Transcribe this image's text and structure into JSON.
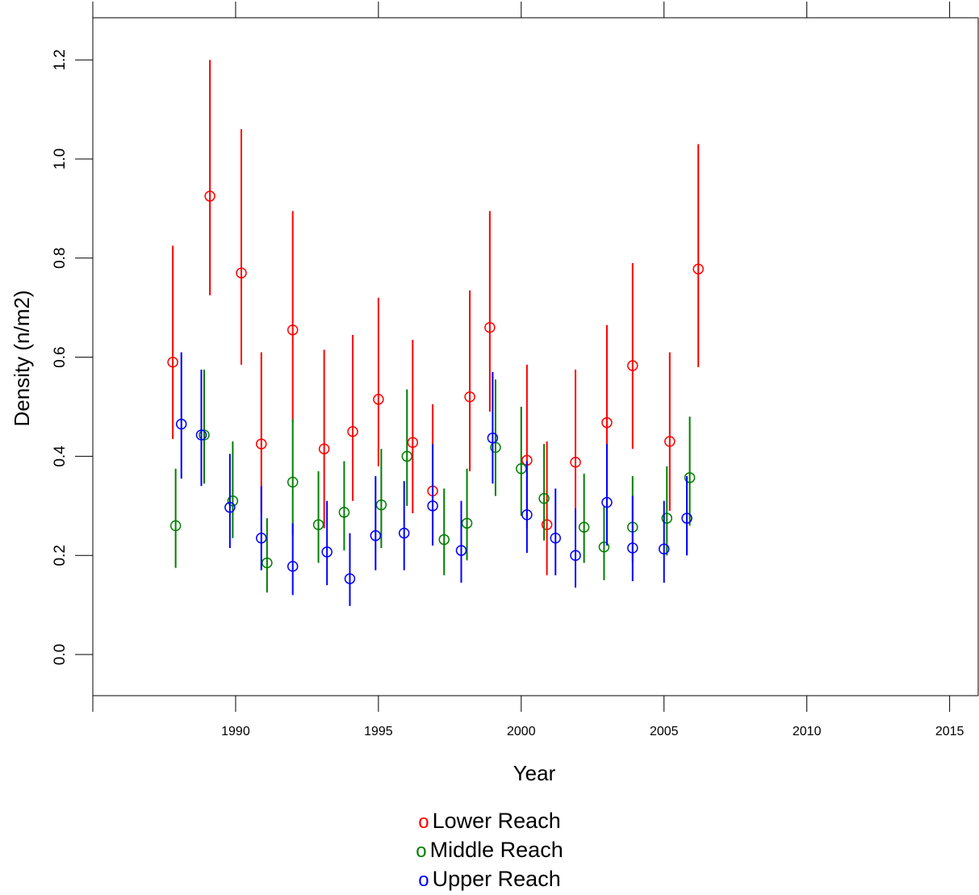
{
  "chart_data": {
    "type": "scatter",
    "xlabel": "Year",
    "ylabel": "Density (n/m2)",
    "xlim": [
      1985,
      2016
    ],
    "ylim": [
      -0.083,
      1.285
    ],
    "x_ticks": [
      "1990",
      "1995",
      "2000",
      "2005",
      "2010",
      "2015"
    ],
    "y_ticks": [
      "0.0",
      "0.2",
      "0.4",
      "0.6",
      "0.8",
      "1.0",
      "1.2"
    ],
    "error_bars": true,
    "series": [
      {
        "name": "Lower Reach",
        "color": "#ff0000",
        "x": [
          1987.8,
          1989.1,
          1990.2,
          1990.9,
          1992.0,
          1993.1,
          1994.1,
          1995.0,
          1996.2,
          1996.9,
          1998.2,
          1998.9,
          2000.2,
          2000.9,
          2001.9,
          2003.0,
          2003.9,
          2005.2,
          2006.2
        ],
        "y": [
          0.59,
          0.925,
          0.77,
          0.425,
          0.655,
          0.415,
          0.45,
          0.515,
          0.428,
          0.33,
          0.52,
          0.66,
          0.392,
          0.262,
          0.388,
          0.468,
          0.583,
          0.43,
          0.778
        ],
        "lower": [
          0.435,
          0.725,
          0.585,
          0.285,
          0.47,
          0.255,
          0.31,
          0.38,
          0.285,
          0.22,
          0.37,
          0.49,
          0.255,
          0.16,
          0.255,
          0.32,
          0.415,
          0.29,
          0.58
        ],
        "upper": [
          0.825,
          1.2,
          1.06,
          0.61,
          0.895,
          0.615,
          0.645,
          0.72,
          0.635,
          0.505,
          0.735,
          0.895,
          0.585,
          0.43,
          0.575,
          0.665,
          0.79,
          0.61,
          1.03
        ]
      },
      {
        "name": "Middle Reach",
        "color": "#007f00",
        "x": [
          1987.9,
          1988.9,
          1989.9,
          1991.1,
          1992.0,
          1992.9,
          1993.8,
          1995.1,
          1996.0,
          1997.3,
          1998.1,
          1999.1,
          2000.0,
          2000.8,
          2002.2,
          2002.9,
          2003.9,
          2005.1,
          2005.9
        ],
        "y": [
          0.26,
          0.443,
          0.31,
          0.185,
          0.348,
          0.262,
          0.287,
          0.302,
          0.4,
          0.232,
          0.265,
          0.418,
          0.375,
          0.315,
          0.257,
          0.217,
          0.257,
          0.275,
          0.357
        ],
        "lower": [
          0.175,
          0.345,
          0.235,
          0.125,
          0.24,
          0.185,
          0.21,
          0.215,
          0.3,
          0.16,
          0.19,
          0.32,
          0.28,
          0.23,
          0.185,
          0.15,
          0.185,
          0.2,
          0.26
        ],
        "upper": [
          0.375,
          0.575,
          0.43,
          0.275,
          0.475,
          0.37,
          0.39,
          0.415,
          0.535,
          0.335,
          0.375,
          0.555,
          0.5,
          0.425,
          0.365,
          0.3,
          0.36,
          0.38,
          0.48
        ]
      },
      {
        "name": "Upper Reach",
        "color": "#0000ff",
        "x": [
          1988.1,
          1988.8,
          1989.8,
          1990.9,
          1992.0,
          1993.2,
          1994.0,
          1994.9,
          1995.9,
          1996.9,
          1997.9,
          1999.0,
          2000.2,
          2001.2,
          2001.9,
          2003.0,
          2003.9,
          2005.0,
          2005.8
        ],
        "y": [
          0.465,
          0.443,
          0.297,
          0.235,
          0.178,
          0.207,
          0.153,
          0.24,
          0.245,
          0.3,
          0.21,
          0.437,
          0.282,
          0.235,
          0.2,
          0.307,
          0.215,
          0.213,
          0.275
        ],
        "lower": [
          0.355,
          0.34,
          0.215,
          0.17,
          0.12,
          0.14,
          0.098,
          0.17,
          0.17,
          0.22,
          0.145,
          0.345,
          0.205,
          0.16,
          0.135,
          0.22,
          0.148,
          0.145,
          0.2
        ],
        "upper": [
          0.61,
          0.575,
          0.405,
          0.34,
          0.265,
          0.31,
          0.245,
          0.36,
          0.35,
          0.425,
          0.31,
          0.57,
          0.39,
          0.335,
          0.295,
          0.425,
          0.32,
          0.31,
          0.36
        ]
      }
    ],
    "legend": [
      {
        "symbol": "o",
        "label": "Lower Reach",
        "color": "#ff0000"
      },
      {
        "symbol": "o",
        "label": "Middle Reach",
        "color": "#007f00"
      },
      {
        "symbol": "o",
        "label": "Upper Reach",
        "color": "#0000ff"
      }
    ],
    "legend_position": "bottom-center"
  }
}
